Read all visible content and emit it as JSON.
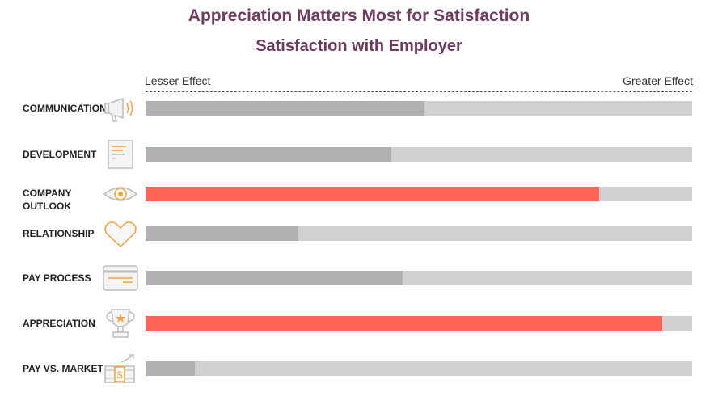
{
  "chart_data": {
    "type": "bar",
    "orientation": "horizontal",
    "title": "Appreciation Matters Most for Satisfaction",
    "subtitle": "Satisfaction with Employer",
    "scale": {
      "low_label": "Lesser Effect",
      "high_label": "Greater Effect",
      "range": [
        0,
        100
      ]
    },
    "categories": [
      "COMMUNICATION",
      "DEVELOPMENT",
      "COMPANY OUTLOOK",
      "RELATIONSHIP",
      "PAY PROCESS",
      "APPRECIATION",
      "PAY VS. MARKET"
    ],
    "values": [
      51,
      45,
      83,
      28,
      47,
      94.5,
      9
    ],
    "highlighted": [
      false,
      false,
      true,
      false,
      false,
      true,
      false
    ],
    "icons": [
      "megaphone-icon",
      "document-icon",
      "eye-icon",
      "heart-icon",
      "credit-card-icon",
      "trophy-icon",
      "money-growth-icon"
    ]
  },
  "colors": {
    "title": "#6e3a5e",
    "bar_default": "#b2b0b3",
    "bar_highlight": "#ff6657",
    "track": "#d1cfd2",
    "icon_stroke": "#bdbdbd",
    "icon_accent": "#f5a03a"
  }
}
